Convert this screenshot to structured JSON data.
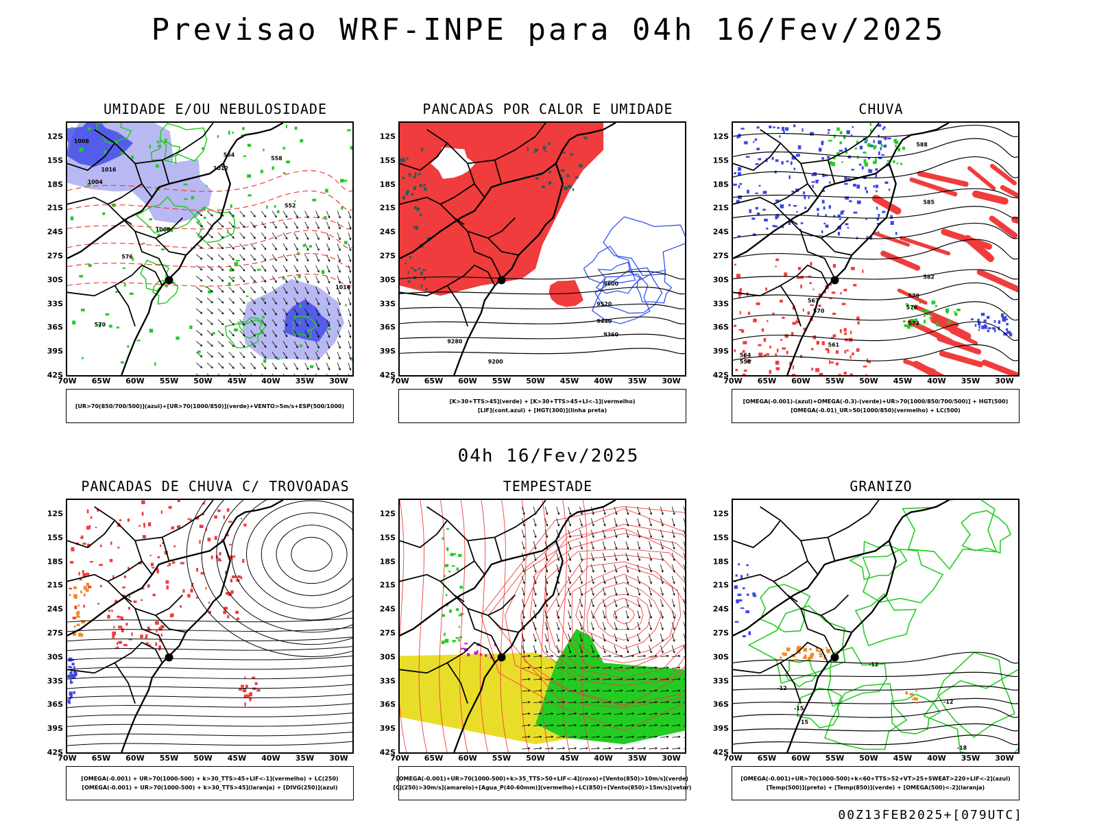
{
  "header": {
    "title": "Previsao WRF-INPE  para 04h 16/Fev/2025",
    "mid_title": "04h 16/Fev/2025",
    "footer_stamp": "00Z13FEB2025+[079UTC]"
  },
  "axes": {
    "latitudes": [
      "12S",
      "15S",
      "18S",
      "21S",
      "24S",
      "27S",
      "30S",
      "33S",
      "36S",
      "39S",
      "42S"
    ],
    "longitudes": [
      "70W",
      "65W",
      "60W",
      "55W",
      "50W",
      "45W",
      "40W",
      "35W",
      "30W"
    ]
  },
  "colors": {
    "blue": "#3b46e6",
    "lavender": "#b8b8f2",
    "green": "#22cc22",
    "red": "#f03c3c",
    "yellow": "#e8de2a",
    "orange": "#f08a2a",
    "dark_teal": "#2a5a5a",
    "purple": "#c020d0"
  },
  "panels": [
    {
      "id": "umidade",
      "title": "UMIDADE E/OU NEBULOSIDADE",
      "legend": [
        "[UR>70(850/700/500)](azul)+[UR>70(1000/850)](verde)+VENTO>5m/s+ESP(500/1000)"
      ],
      "labels": [
        "1008",
        "1012",
        "1016",
        "1004",
        "1008",
        "576",
        "570",
        "564",
        "558",
        "552",
        "1016"
      ]
    },
    {
      "id": "pancadas",
      "title": "PANCADAS POR CALOR E UMIDADE",
      "legend": [
        "[K>30+TTS>45](verde) + [K>30+TTS>45+LI<-1](vermelho)",
        "[LIF](cont.azul) + [HGT(300)](linha preta)"
      ],
      "labels": [
        "9600",
        "9520",
        "9440",
        "9360",
        "9280",
        "9200"
      ]
    },
    {
      "id": "chuva",
      "title": "CHUVA",
      "legend": [
        "[OMEGA(-0.001)-(azul)+OMEGA(-0.3)-(verde)+UR>70(1000/850/700/500)] + HGT(500)",
        "[OMEGA(-0.01)_UR>50(1000/850)(vermelho) + LC(500)"
      ],
      "labels": [
        "588",
        "585",
        "582",
        "579",
        "576",
        "573",
        "570",
        "567",
        "564",
        "561",
        "558"
      ]
    },
    {
      "id": "trovoadas",
      "title": "PANCADAS DE CHUVA C/ TROVOADAS",
      "legend": [
        "[OMEGA(-0.001) + UR>70(1000-500) + k>30_TTS>45+LIF<-1](vermelho) + LC(250)",
        "[OMEGA(-0.001) + UR>70(1000-500) + k>30_TTS>45](laranja) + [DIVG(250)](azul)"
      ],
      "labels": []
    },
    {
      "id": "tempestade",
      "title": "TEMPESTADE",
      "legend": [
        "[OMEGA(-0.001)+UR>70(1000-500)+k>35_TTS>50+LIF<-4](roxo)+[Vento(850)>10m/s](verde)",
        "[CJ(250)>30m/s](amarelo)+[Agua_P(40-60mm)](vermelho)+LC(850)+[Vento(850)>15m/s](vetor)"
      ],
      "labels": []
    },
    {
      "id": "granizo",
      "title": "GRANIZO",
      "legend": [
        "[OMEGA(-0.001)+UR>70(1000-500)+k<60+TTS>52+VT>25+SWEAT>220+LIF<-2](azul)",
        "[Temp(500)](preto) + [Temp(850)](verde) + [OMEGA(500)<-2](laranja)"
      ],
      "labels": [
        "-12",
        "-12",
        "-15",
        "-12",
        "15",
        "-18"
      ]
    }
  ]
}
